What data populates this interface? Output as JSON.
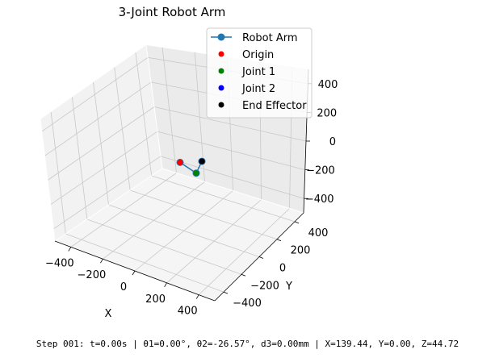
{
  "status_text": "Step 001: t=0.00s | θ1=0.00°, θ2=-26.57°, d3=0.00mm | X=139.44, Y=0.00, Z=44.72",
  "chart_data": {
    "type": "line3d",
    "title": "3-Joint Robot Arm",
    "xlabel": "X",
    "ylabel": "Y",
    "zlabel": "",
    "xlim": [
      -500,
      500
    ],
    "ylim": [
      -500,
      500
    ],
    "zlim": [
      -500,
      500
    ],
    "xticks": [
      -400,
      -200,
      0,
      200,
      400
    ],
    "yticks": [
      -400,
      -200,
      0,
      200,
      400
    ],
    "zticks": [
      -400,
      -200,
      0,
      200,
      400
    ],
    "x_tick_labels": [
      "−400",
      "−200",
      "0",
      "200",
      "400"
    ],
    "y_tick_labels": [
      "−400",
      "−200",
      "0",
      "200",
      "400"
    ],
    "z_tick_labels": [
      "−400",
      "−200",
      "0",
      "200",
      "400"
    ],
    "grid": true,
    "legend_position": "top-right",
    "series": [
      {
        "name": "Robot Arm",
        "kind": "line",
        "color": "#1f77b4",
        "points": [
          [
            0,
            0,
            0
          ],
          [
            100,
            0,
            -50
          ],
          [
            139.44,
            0,
            44.72
          ]
        ]
      },
      {
        "name": "Origin",
        "kind": "point",
        "color": "#ff0000",
        "points": [
          [
            0,
            0,
            0
          ]
        ]
      },
      {
        "name": "Joint 1",
        "kind": "point",
        "color": "#008000",
        "points": [
          [
            100,
            0,
            -50
          ]
        ]
      },
      {
        "name": "Joint 2",
        "kind": "point",
        "color": "#0000ff",
        "points": [
          [
            139.44,
            0,
            44.72
          ]
        ]
      },
      {
        "name": "End Effector",
        "kind": "point",
        "color": "#000000",
        "points": [
          [
            139.44,
            0,
            44.72
          ]
        ]
      }
    ]
  }
}
